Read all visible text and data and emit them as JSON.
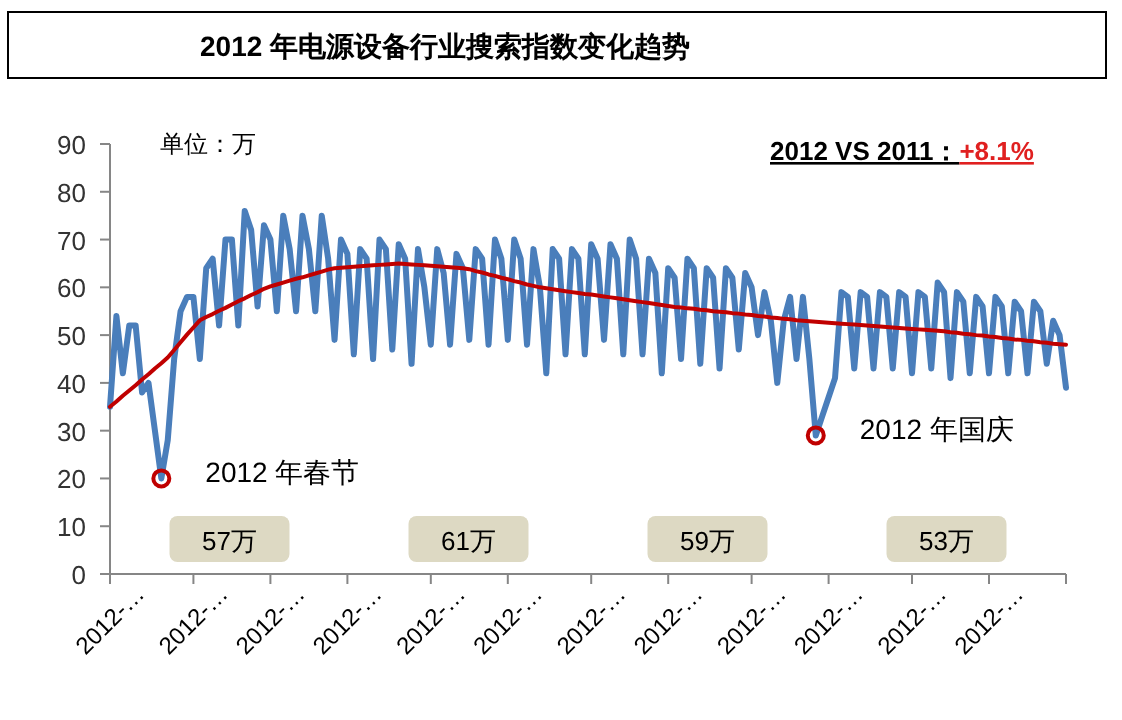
{
  "chart_data": {
    "type": "line",
    "title": "2012 年电源设备行业搜索指数变化趋势",
    "annotations": [
      "单位：万",
      "2012 VS 2011：",
      "+8.1%",
      "57万",
      "61万",
      "59万",
      "53万",
      "2012 年春节",
      "2012 年国庆"
    ],
    "categories": [
      "2012-…",
      null,
      null,
      null,
      null,
      null,
      null,
      null,
      null,
      null,
      null,
      null,
      null,
      "2012-…",
      null,
      null,
      null,
      null,
      null,
      null,
      null,
      null,
      null,
      null,
      null,
      "2012-…",
      null,
      null,
      null,
      null,
      null,
      null,
      null,
      null,
      null,
      null,
      null,
      "2012-…",
      null,
      null,
      null,
      null,
      null,
      null,
      null,
      null,
      null,
      null,
      null,
      null,
      "2012-…",
      null,
      null,
      null,
      null,
      null,
      null,
      null,
      null,
      null,
      null,
      null,
      "2012-…",
      null,
      null,
      null,
      null,
      null,
      null,
      null,
      null,
      null,
      null,
      null,
      null,
      "2012-…",
      null,
      null,
      null,
      null,
      null,
      null,
      null,
      null,
      null,
      null,
      null,
      "2012-…",
      null,
      null,
      null,
      null,
      null,
      null,
      null,
      null,
      null,
      null,
      null,
      null,
      "2012-…",
      null,
      null,
      null,
      null,
      null,
      null,
      null,
      null,
      null,
      null,
      null,
      "2012-…",
      null,
      null,
      null,
      null,
      null,
      null,
      null,
      null,
      null,
      null,
      null,
      null,
      "2012-…",
      null,
      null,
      null,
      null,
      null,
      null,
      null,
      null,
      null,
      null,
      null,
      "2012-…",
      null,
      null,
      null,
      null,
      null,
      null,
      null,
      null,
      null,
      null,
      null,
      null
    ],
    "ylim": [
      0,
      90
    ],
    "yticks": [
      0,
      10,
      20,
      30,
      40,
      50,
      60,
      70,
      80,
      90
    ],
    "series": [
      {
        "color": "#4a7ebb",
        "values": [
          35,
          54,
          42,
          52,
          52,
          38,
          40,
          30,
          20,
          28,
          45,
          55,
          58,
          58,
          45,
          64,
          66,
          52,
          70,
          70,
          52,
          76,
          72,
          56,
          73,
          70,
          55,
          75,
          68,
          55,
          75,
          68,
          55,
          75,
          66,
          49,
          70,
          67,
          46,
          68,
          66,
          45,
          70,
          68,
          47,
          69,
          66,
          44,
          68,
          60,
          48,
          68,
          63,
          48,
          67,
          64,
          49,
          68,
          66,
          48,
          70,
          66,
          49,
          70,
          66,
          48,
          68,
          60,
          42,
          68,
          66,
          46,
          68,
          66,
          46,
          69,
          66,
          49,
          69,
          66,
          46,
          70,
          66,
          46,
          66,
          63,
          42,
          64,
          62,
          45,
          66,
          64,
          44,
          64,
          62,
          43,
          64,
          62,
          47,
          63,
          60,
          50,
          59,
          53,
          40,
          53,
          58,
          45,
          58,
          45,
          29,
          33,
          37,
          41,
          59,
          58,
          43,
          59,
          58,
          43,
          59,
          58,
          43,
          59,
          58,
          42,
          59,
          58,
          43,
          61,
          59,
          41,
          59,
          57,
          42,
          58,
          56,
          42,
          58,
          56,
          42,
          57,
          55,
          42,
          57,
          55,
          44,
          53,
          50,
          39
        ]
      },
      {
        "type": "scatter",
        "marker": "circle",
        "color": "#c00000",
        "values": [
          null,
          null,
          null,
          null,
          null,
          null,
          null,
          null,
          20,
          null,
          null,
          null,
          null,
          null,
          null,
          null,
          null,
          null,
          null,
          null,
          null,
          null,
          null,
          null,
          null,
          null,
          null,
          null,
          null,
          null,
          null,
          null,
          null,
          null,
          null,
          null,
          null,
          null,
          null,
          null,
          null,
          null,
          null,
          null,
          null,
          null,
          null,
          null,
          null,
          null,
          null,
          null,
          null,
          null,
          null,
          null,
          null,
          null,
          null,
          null,
          null,
          null,
          null,
          null,
          null,
          null,
          null,
          null,
          null,
          null,
          null,
          null,
          null,
          null,
          null,
          null,
          null,
          null,
          null,
          null,
          null,
          null,
          null,
          null,
          null,
          null,
          null,
          null,
          null,
          null,
          null,
          null,
          null,
          null,
          null,
          null,
          null,
          null,
          null,
          null,
          null,
          null,
          null,
          null,
          null,
          null,
          null,
          null,
          null,
          null,
          29,
          null,
          null,
          null,
          null,
          null,
          null,
          null,
          null,
          null,
          null,
          null,
          null,
          null,
          null,
          null,
          null,
          null,
          null,
          null,
          null,
          null,
          null,
          null,
          null,
          null,
          null,
          null,
          null,
          null,
          null,
          null,
          null,
          null,
          null,
          null,
          null,
          null,
          null,
          null
        ]
      },
      {
        "color": "#c00000",
        "values": [
          35,
          36.1,
          37.3,
          38.4,
          39.5,
          40.7,
          41.8,
          43.0,
          44.1,
          45.3,
          46.9,
          48.5,
          50.1,
          51.6,
          53.1,
          53.8,
          54.4,
          55.1,
          55.7,
          56.4,
          57.1,
          57.7,
          58.4,
          59.0,
          59.7,
          60.2,
          60.6,
          61.0,
          61.4,
          61.8,
          62.1,
          62.5,
          62.9,
          63.3,
          63.7,
          64.0,
          64.1,
          64.2,
          64.3,
          64.4,
          64.5,
          64.6,
          64.7,
          64.8,
          64.9,
          65.0,
          64.9,
          64.8,
          64.7,
          64.6,
          64.5,
          64.4,
          64.3,
          64.2,
          64.1,
          64.0,
          63.8,
          63.4,
          63.1,
          62.7,
          62.4,
          62.0,
          61.7,
          61.3,
          61.0,
          60.6,
          60.3,
          60.0,
          59.8,
          59.6,
          59.4,
          59.2,
          59.0,
          58.8,
          58.6,
          58.5,
          58.3,
          58.1,
          57.9,
          57.7,
          57.5,
          57.3,
          57.1,
          56.9,
          56.7,
          56.5,
          56.3,
          56.1,
          55.9,
          55.8,
          55.6,
          55.5,
          55.3,
          55.2,
          55.0,
          54.9,
          54.8,
          54.6,
          54.5,
          54.3,
          54.2,
          54.0,
          53.9,
          53.7,
          53.6,
          53.4,
          53.3,
          53.1,
          53.0,
          52.9,
          52.8,
          52.7,
          52.6,
          52.5,
          52.4,
          52.3,
          52.2,
          52.1,
          52.0,
          51.9,
          51.8,
          51.7,
          51.6,
          51.5,
          51.4,
          51.3,
          51.2,
          51.1,
          51.0,
          50.9,
          50.8,
          50.6,
          50.5,
          50.3,
          50.2,
          50.0,
          49.9,
          49.7,
          49.6,
          49.4,
          49.3,
          49.1,
          49.0,
          48.8,
          48.7,
          48.5,
          48.4,
          48.2,
          48.1,
          48.0
        ]
      }
    ]
  }
}
